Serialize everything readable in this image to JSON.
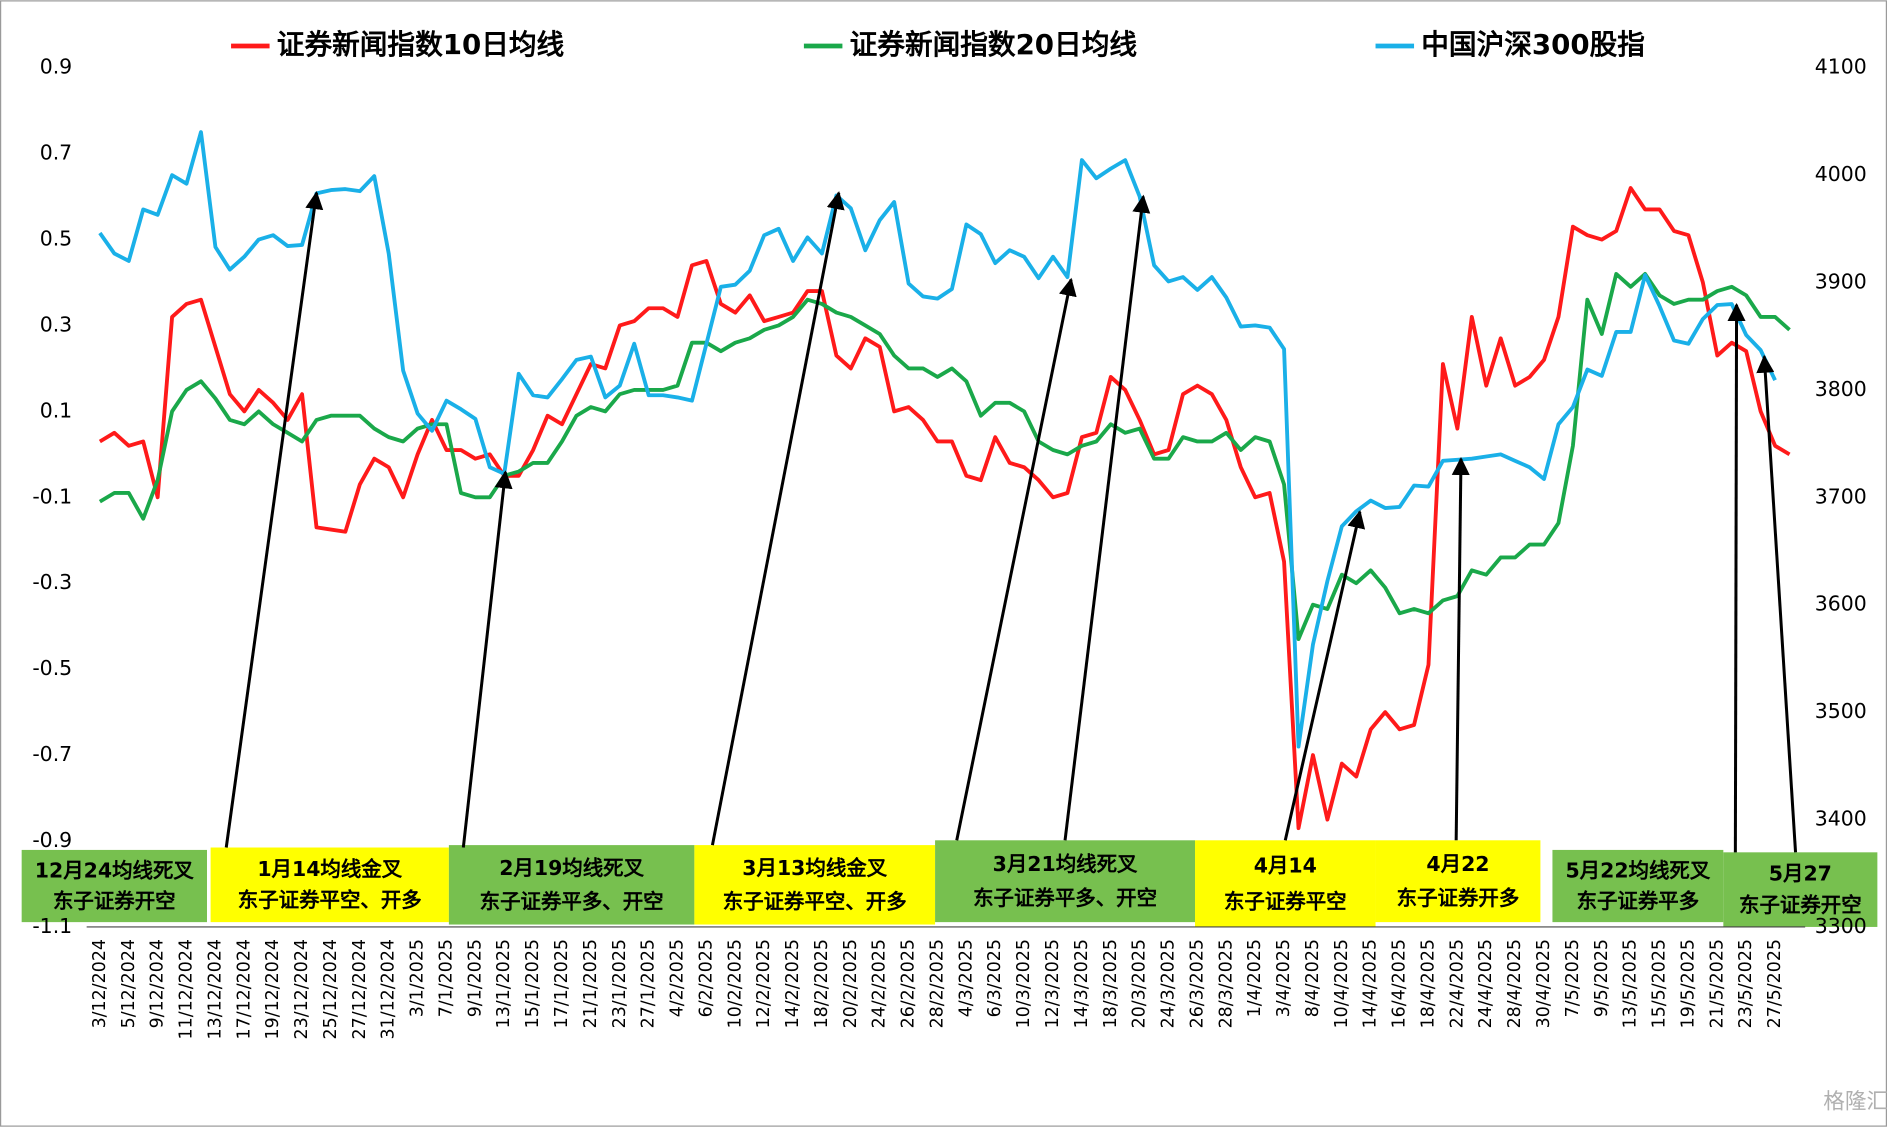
{
  "chart_data": {
    "type": "line",
    "categories": [
      "3/12/2024",
      null,
      "5/12/2024",
      null,
      "9/12/2024",
      null,
      "11/12/2024",
      null,
      "13/12/2024",
      null,
      "17/12/2024",
      null,
      "19/12/2024",
      null,
      "23/12/2024",
      null,
      "25/12/2024",
      null,
      "27/12/2024",
      null,
      "31/12/2024",
      null,
      "3/1/2025",
      null,
      "7/1/2025",
      null,
      "9/1/2025",
      null,
      "13/1/2025",
      null,
      "15/1/2025",
      null,
      "17/1/2025",
      null,
      "21/1/2025",
      null,
      "23/1/2025",
      null,
      "27/1/2025",
      null,
      "4/2/2025",
      null,
      "6/2/2025",
      null,
      "10/2/2025",
      null,
      "12/2/2025",
      null,
      "14/2/2025",
      null,
      "18/2/2025",
      null,
      "20/2/2025",
      null,
      "24/2/2025",
      null,
      "26/2/2025",
      null,
      "28/2/2025",
      null,
      "4/3/2025",
      null,
      "6/3/2025",
      null,
      "10/3/2025",
      null,
      "12/3/2025",
      null,
      "14/3/2025",
      null,
      "18/3/2025",
      null,
      "20/3/2025",
      null,
      "24/3/2025",
      null,
      "26/3/2025",
      null,
      "28/3/2025",
      null,
      "1/4/2025",
      null,
      "3/4/2025",
      null,
      "8/4/2025",
      null,
      "10/4/2025",
      null,
      "14/4/2025",
      null,
      "16/4/2025",
      null,
      "18/4/2025",
      null,
      "22/4/2025",
      null,
      "24/4/2025",
      null,
      "28/4/2025",
      null,
      "30/4/2025",
      null,
      "7/5/2025",
      null,
      "9/5/2025",
      null,
      "13/5/2025",
      null,
      "15/5/2025",
      null,
      "19/5/2025",
      null,
      "21/5/2025",
      null,
      "23/5/2025",
      null,
      "27/5/2025",
      null
    ],
    "series": [
      {
        "name": "证券新闻指数10日均线",
        "color": "#ff1a1a",
        "values": [
          0.03,
          0.05,
          0.02,
          0.03,
          -0.1,
          0.32,
          0.35,
          0.36,
          0.25,
          0.14,
          0.1,
          0.15,
          0.12,
          0.08,
          0.14,
          -0.17,
          -0.175,
          -0.18,
          -0.07,
          -0.01,
          -0.03,
          -0.1,
          0.0,
          0.08,
          0.01,
          0.01,
          -0.01,
          0.0,
          -0.05,
          -0.05,
          0.01,
          0.09,
          0.07,
          0.14,
          0.21,
          0.2,
          0.3,
          0.31,
          0.34,
          0.34,
          0.32,
          0.44,
          0.45,
          0.35,
          0.33,
          0.37,
          0.31,
          0.32,
          0.33,
          0.38,
          0.38,
          0.23,
          0.2,
          0.27,
          0.25,
          0.1,
          0.11,
          0.08,
          0.03,
          0.03,
          -0.05,
          -0.06,
          0.04,
          -0.02,
          -0.03,
          -0.06,
          -0.1,
          -0.09,
          0.04,
          0.05,
          0.18,
          0.15,
          0.08,
          0.0,
          0.01,
          0.14,
          0.16,
          0.14,
          0.08,
          -0.03,
          -0.1,
          -0.09,
          -0.25,
          -0.87,
          -0.7,
          -0.85,
          -0.72,
          -0.75,
          -0.64,
          -0.6,
          -0.64,
          -0.63,
          -0.49,
          0.21,
          0.06,
          0.32,
          0.16,
          0.27,
          0.16,
          0.18,
          0.22,
          0.32,
          0.53,
          0.51,
          0.5,
          0.52,
          0.62,
          0.57,
          0.57,
          0.52,
          0.51,
          0.4,
          0.23,
          0.26,
          0.24,
          0.1,
          0.02,
          0.0
        ]
      },
      {
        "name": "证券新闻指数20日均线",
        "color": "#1aa84a",
        "values": [
          -0.11,
          -0.09,
          -0.09,
          -0.15,
          -0.06,
          0.1,
          0.15,
          0.17,
          0.13,
          0.08,
          0.07,
          0.1,
          0.07,
          0.05,
          0.03,
          0.08,
          0.09,
          0.09,
          0.09,
          0.06,
          0.04,
          0.03,
          0.06,
          0.07,
          0.07,
          -0.09,
          -0.1,
          -0.1,
          -0.05,
          -0.04,
          -0.02,
          -0.02,
          0.03,
          0.09,
          0.11,
          0.1,
          0.14,
          0.15,
          0.15,
          0.15,
          0.16,
          0.26,
          0.26,
          0.24,
          0.26,
          0.27,
          0.29,
          0.3,
          0.32,
          0.36,
          0.35,
          0.33,
          0.32,
          0.3,
          0.28,
          0.23,
          0.2,
          0.2,
          0.18,
          0.2,
          0.17,
          0.09,
          0.12,
          0.12,
          0.1,
          0.03,
          0.01,
          0.0,
          0.02,
          0.03,
          0.07,
          0.05,
          0.06,
          -0.01,
          -0.01,
          0.04,
          0.03,
          0.03,
          0.05,
          0.01,
          0.04,
          0.03,
          -0.07,
          -0.43,
          -0.35,
          -0.36,
          -0.28,
          -0.3,
          -0.27,
          -0.31,
          -0.37,
          -0.36,
          -0.37,
          -0.34,
          -0.33,
          -0.27,
          -0.28,
          -0.24,
          -0.24,
          -0.21,
          -0.21,
          -0.16,
          0.02,
          0.36,
          0.28,
          0.42,
          0.39,
          0.42,
          0.37,
          0.35,
          0.36,
          0.36,
          0.38,
          0.39,
          0.37,
          0.32,
          0.32,
          0.29
        ]
      },
      {
        "name": "中国沪深300股指",
        "color": "#1ab0e8",
        "axis": "y2",
        "values": [
          3946,
          3927,
          3920,
          3968,
          3963,
          4000,
          3992,
          4040,
          3933,
          3912,
          3924,
          3940,
          3944,
          3934,
          3935,
          3983,
          3986,
          3987,
          3985,
          3999,
          3927,
          3818,
          3778,
          3762,
          3790,
          3782,
          3773,
          3728,
          3722,
          3815,
          3795,
          3793,
          3810,
          3828,
          3831,
          3793,
          3804,
          3843,
          3795,
          3795,
          3793,
          3790,
          3843,
          3896,
          3898,
          3911,
          3944,
          3950,
          3920,
          3942,
          3927,
          3981,
          3969,
          3930,
          3958,
          3975,
          3899,
          3887,
          3885,
          3894,
          3954,
          3945,
          3918,
          3930,
          3924,
          3904,
          3924,
          3905,
          4014,
          3997,
          4006,
          4014,
          3980,
          3916,
          3901,
          3905,
          3893,
          3905,
          3886,
          3859,
          3860,
          3858,
          3838,
          3468,
          3563,
          3622,
          3673,
          3687,
          3697,
          3690,
          3691,
          3711,
          3710,
          3734,
          3735,
          3736,
          3738,
          3740,
          3734,
          3728,
          3717,
          3768,
          3784,
          3819,
          3813,
          3854,
          3854,
          3907,
          3878,
          3846,
          3843,
          3866,
          3879,
          3880,
          3851,
          3837,
          3809,
          null
        ]
      }
    ],
    "ylim": [
      -1.1,
      0.9
    ],
    "yticks": [
      -1.1,
      -0.9,
      -0.7,
      -0.5,
      -0.3,
      -0.1,
      0.1,
      0.3,
      0.5,
      0.7,
      0.9
    ],
    "y2lim": [
      3300,
      4100
    ],
    "y2ticks": [
      3300,
      3400,
      3500,
      3600,
      3700,
      3800,
      3900,
      4000,
      4100
    ],
    "grid": false,
    "legend": "top",
    "annotations": [
      {
        "lines": [
          "12月24均线死叉",
          "东子证券开空"
        ],
        "color": "#77c04f"
      },
      {
        "lines": [
          "1月14均线金叉",
          "东子证券平空、开多"
        ],
        "color": "#ffff00"
      },
      {
        "lines": [
          "2月19均线死叉",
          "东子证券平多、开空"
        ],
        "color": "#77c04f"
      },
      {
        "lines": [
          "3月13均线金叉",
          "东子证券平空、开多"
        ],
        "color": "#ffff00"
      },
      {
        "lines": [
          "3月21均线死叉",
          "东子证券平多、开空"
        ],
        "color": "#77c04f"
      },
      {
        "lines": [
          "4月14",
          "东子证券平空"
        ],
        "color": "#ffff00"
      },
      {
        "lines": [
          "4月22",
          "东子证券开多"
        ],
        "color": "#ffff00"
      },
      {
        "lines": [
          "5月22均线死叉",
          "东子证券平多"
        ],
        "color": "#77c04f"
      },
      {
        "lines": [
          "5月27",
          "东子证券开空"
        ],
        "color": "#77c04f"
      }
    ],
    "watermark": "格隆汇"
  }
}
